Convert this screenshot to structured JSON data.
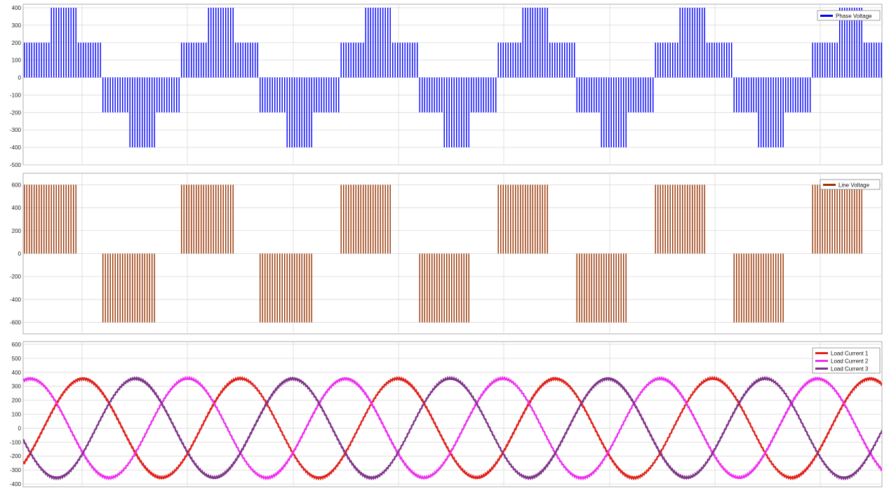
{
  "chart_data": [
    {
      "type": "line",
      "title": "",
      "xlabel": "",
      "ylabel": "",
      "ylim": [
        -500,
        420
      ],
      "yticks": [
        400,
        300,
        200,
        100,
        0,
        -100,
        -200,
        -300,
        -400,
        -500
      ],
      "grid": true,
      "legend": "top-right",
      "series": [
        {
          "name": "Phase Voltage",
          "color": "#0000ff",
          "kind": "pwm",
          "levels": [
            [
              0,
              200
            ],
            [
              0,
              400
            ],
            [
              0,
              200
            ],
            [
              -200,
              0
            ],
            [
              -400,
              0
            ],
            [
              -200,
              0
            ]
          ]
        }
      ]
    },
    {
      "type": "line",
      "title": "",
      "xlabel": "",
      "ylabel": "",
      "ylim": [
        -700,
        700
      ],
      "yticks": [
        600,
        400,
        200,
        0,
        -200,
        -400,
        -600
      ],
      "grid": true,
      "legend": "top-right",
      "series": [
        {
          "name": "Line Voltage",
          "color": "#993300",
          "kind": "pwm",
          "levels": [
            [
              0,
              600
            ],
            [
              0,
              600
            ],
            [
              0,
              0
            ],
            [
              -600,
              0
            ],
            [
              -600,
              0
            ],
            [
              0,
              0
            ]
          ]
        }
      ]
    },
    {
      "type": "line",
      "title": "",
      "xlabel": "",
      "ylabel": "",
      "ylim": [
        -420,
        620
      ],
      "yticks": [
        600,
        500,
        400,
        300,
        200,
        100,
        0,
        -100,
        -200,
        -300,
        -400
      ],
      "grid": true,
      "legend": "top-right",
      "series": [
        {
          "name": "Load Current 1",
          "color": "#e0201a",
          "kind": "sine",
          "amplitude": 355,
          "phase_deg": -45
        },
        {
          "name": "Load Current 2",
          "color": "#ee30ee",
          "kind": "sine",
          "amplitude": 355,
          "phase_deg": 75
        },
        {
          "name": "Load Current 3",
          "color": "#7e3388",
          "kind": "sine",
          "amplitude": 355,
          "phase_deg": -165
        }
      ]
    }
  ]
}
